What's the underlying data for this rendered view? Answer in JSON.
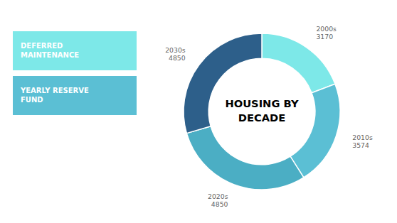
{
  "chart_data": {
    "type": "donut",
    "title": "HOUSING BY\nDECADE",
    "categories": [
      "2000s",
      "2010s",
      "2020s",
      "2030s"
    ],
    "values": [
      3170,
      3574,
      4850,
      4850
    ],
    "colors": [
      "#7de8e8",
      "#5bbfd4",
      "#4baec4",
      "#2d5f8a"
    ],
    "data_labels": true,
    "annotations": [
      {
        "text": "DEFERRED\nMAINTENANCE",
        "color": "#7de8e8"
      },
      {
        "text": "YEARLY RESERVE\nFUND",
        "color": "#5bbfd4"
      }
    ]
  }
}
